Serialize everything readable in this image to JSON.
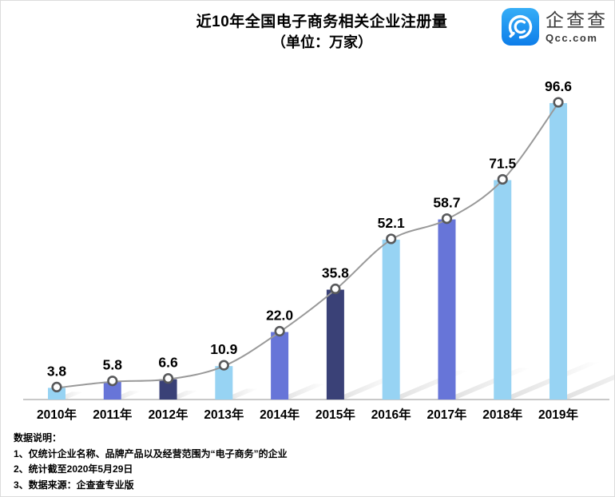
{
  "title": {
    "line1": "近10年全国电子商务相关企业注册量",
    "line2": "（单位：万家）"
  },
  "logo": {
    "name": "企查查",
    "domain": "Qcc.com",
    "icon": "qcc-magnifier-icon",
    "brand_blue_top": "#36aef7",
    "brand_blue_bottom": "#0d7de9"
  },
  "chart_data": {
    "type": "bar",
    "overlay": "line",
    "title": "近10年全国电子商务相关企业注册量",
    "subtitle": "（单位：万家）",
    "xlabel": "",
    "ylabel": "万家",
    "ylim": [
      0,
      100
    ],
    "grid": false,
    "legend": "none",
    "categories": [
      "2010年",
      "2011年",
      "2012年",
      "2013年",
      "2014年",
      "2015年",
      "2016年",
      "2017年",
      "2018年",
      "2019年"
    ],
    "values": [
      3.8,
      5.8,
      6.6,
      10.9,
      22.0,
      35.8,
      52.1,
      58.7,
      71.5,
      96.6
    ],
    "value_labels": [
      "3.8",
      "5.8",
      "6.6",
      "10.9",
      "22.0",
      "35.8",
      "52.1",
      "58.7",
      "71.5",
      "96.6"
    ],
    "bar_colors": [
      "#97d3f3",
      "#6775d8",
      "#3a4177",
      "#97d3f3",
      "#6775d8",
      "#3a4177",
      "#97d3f3",
      "#6775d8",
      "#97d3f3",
      "#97d3f3"
    ],
    "line_color": "#999999",
    "marker_fill": "#ffffff",
    "marker_stroke": "#58595b",
    "axis_color": "#c9c9c9",
    "label_color": "#000000"
  },
  "notes": {
    "heading": "数据说明：",
    "items": [
      "1、仅统计企业名称、品牌产品以及经营范围为“电子商务”的企业",
      "2、统计截至2020年5月29日",
      "3、数据来源：企查查专业版"
    ]
  }
}
